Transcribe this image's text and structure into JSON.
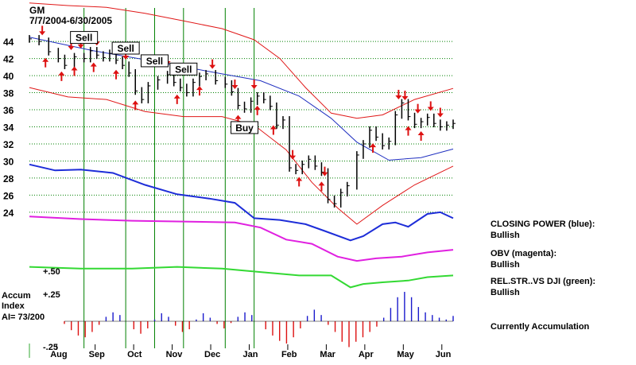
{
  "chart_data": {
    "type": "line",
    "ticker": "GM",
    "date_range": "7/7/2004-6/30/2005",
    "y_ticks": [
      44,
      42,
      40,
      38,
      36,
      34,
      32,
      30,
      28,
      26,
      24
    ],
    "ylim": [
      22.5,
      45.5
    ],
    "months": [
      "Aug",
      "Sep",
      "Oct",
      "Nov",
      "Dec",
      "Jan",
      "Feb",
      "Mar",
      "Apr",
      "May",
      "Jun"
    ],
    "price_series": {
      "t": [
        0,
        3,
        6,
        9,
        11,
        14,
        17,
        19,
        21,
        23,
        25,
        27,
        29,
        31,
        33,
        35,
        37,
        40,
        43,
        45,
        47,
        49,
        51,
        53,
        55,
        58,
        61,
        63,
        65,
        67,
        69,
        71,
        73,
        75,
        77,
        79,
        81,
        83,
        85,
        87,
        89,
        91,
        93,
        95,
        97,
        99,
        102,
        104,
        106,
        108,
        110,
        112,
        114,
        116,
        118,
        120,
        122,
        124,
        126,
        128,
        130,
        132
      ],
      "close": [
        44.3,
        44.0,
        42.8,
        42.0,
        41.2,
        42.2,
        42.0,
        42.9,
        42.4,
        42.1,
        42.6,
        41.8,
        41.2,
        40.3,
        38.2,
        37.2,
        38.8,
        39.5,
        40.1,
        39.2,
        38.6,
        38.0,
        39.2,
        39.9,
        40.2,
        39.4,
        39.0,
        38.1,
        36.5,
        36.1,
        37.0,
        37.6,
        37.2,
        36.4,
        34.2,
        34.8,
        29.2,
        28.9,
        29.6,
        30.2,
        29.4,
        28.7,
        25.5,
        25.0,
        26.3,
        27.1,
        30.7,
        32.0,
        33.6,
        32.8,
        31.8,
        32.3,
        35.4,
        36.8,
        35.2,
        34.3,
        34.6,
        35.1,
        34.4,
        34.0,
        34.2,
        34.4
      ]
    },
    "ma_series": [
      [
        0,
        44.5
      ],
      [
        20,
        42.9
      ],
      [
        40,
        41.6
      ],
      [
        60,
        40.2
      ],
      [
        72,
        39.4
      ],
      [
        84,
        37.6
      ],
      [
        94,
        35.0
      ],
      [
        102,
        32.2
      ],
      [
        112,
        30.1
      ],
      [
        122,
        30.4
      ],
      [
        132,
        31.4
      ]
    ],
    "upper_band": [
      [
        0,
        48.5
      ],
      [
        12,
        48.2
      ],
      [
        24,
        48.0
      ],
      [
        36,
        47.3
      ],
      [
        48,
        46.4
      ],
      [
        60,
        45.5
      ],
      [
        70,
        44.2
      ],
      [
        78,
        42.0
      ],
      [
        86,
        38.6
      ],
      [
        94,
        35.6
      ],
      [
        102,
        35.0
      ],
      [
        110,
        35.4
      ],
      [
        120,
        37.2
      ],
      [
        132,
        38.5
      ]
    ],
    "lower_band": [
      [
        0,
        38.6
      ],
      [
        12,
        37.5
      ],
      [
        24,
        37.2
      ],
      [
        36,
        35.8
      ],
      [
        48,
        35.2
      ],
      [
        60,
        35.2
      ],
      [
        70,
        34.2
      ],
      [
        80,
        31.3
      ],
      [
        88,
        27.5
      ],
      [
        96,
        24.5
      ],
      [
        102,
        22.6
      ],
      [
        110,
        24.8
      ],
      [
        120,
        27.2
      ],
      [
        132,
        29.4
      ]
    ],
    "closing_power_blue": [
      [
        0,
        29.6
      ],
      [
        8,
        28.9
      ],
      [
        16,
        29.0
      ],
      [
        26,
        28.6
      ],
      [
        36,
        27.2
      ],
      [
        46,
        26.1
      ],
      [
        56,
        25.6
      ],
      [
        64,
        25.1
      ],
      [
        70,
        23.3
      ],
      [
        78,
        23.1
      ],
      [
        86,
        22.6
      ],
      [
        92,
        21.8
      ],
      [
        100,
        20.7
      ],
      [
        104,
        21.2
      ],
      [
        110,
        22.6
      ],
      [
        114,
        22.8
      ],
      [
        118,
        22.3
      ],
      [
        124,
        23.8
      ],
      [
        128,
        24.0
      ],
      [
        132,
        23.3
      ]
    ],
    "obv_magenta": [
      [
        0,
        23.5
      ],
      [
        16,
        23.2
      ],
      [
        32,
        23.0
      ],
      [
        50,
        22.9
      ],
      [
        64,
        22.8
      ],
      [
        72,
        22.2
      ],
      [
        80,
        20.8
      ],
      [
        88,
        20.3
      ],
      [
        96,
        18.8
      ],
      [
        102,
        18.3
      ],
      [
        108,
        18.6
      ],
      [
        116,
        18.8
      ],
      [
        124,
        19.3
      ],
      [
        132,
        19.6
      ]
    ],
    "rel_strength_green": [
      [
        0,
        17.6
      ],
      [
        16,
        17.4
      ],
      [
        32,
        17.4
      ],
      [
        46,
        17.6
      ],
      [
        60,
        17.4
      ],
      [
        72,
        17.0
      ],
      [
        84,
        16.6
      ],
      [
        94,
        16.6
      ],
      [
        100,
        15.2
      ],
      [
        104,
        15.6
      ],
      [
        110,
        15.8
      ],
      [
        118,
        16.0
      ],
      [
        124,
        16.4
      ],
      [
        132,
        16.6
      ]
    ],
    "accumulation": {
      "values": [
        -0.03,
        -0.1,
        -0.16,
        -0.18,
        -0.12,
        -0.04,
        0.05,
        0.1,
        0.07,
        0.0,
        -0.09,
        -0.14,
        -0.08,
        0.02,
        0.09,
        0.05,
        -0.05,
        -0.12,
        -0.09,
        0.02,
        0.09,
        0.04,
        -0.03,
        -0.08,
        -0.02,
        0.05,
        0.1,
        0.07,
        0.0,
        -0.09,
        -0.16,
        -0.22,
        -0.25,
        -0.18,
        -0.08,
        0.06,
        0.13,
        0.07,
        -0.04,
        -0.12,
        -0.23,
        -0.29,
        -0.23,
        -0.18,
        -0.12,
        -0.06,
        0.04,
        0.15,
        0.27,
        0.33,
        0.27,
        0.16,
        0.1,
        0.07,
        0.04,
        0.02,
        0.06
      ],
      "upper_label": "+.25",
      "lower_label": "-.25"
    },
    "signals": {
      "sell": [
        {
          "label": "Sell",
          "t": 17
        },
        {
          "label": "Sell",
          "t": 30
        },
        {
          "label": "Sell",
          "t": 39
        },
        {
          "label": "Sell",
          "t": 48
        }
      ],
      "buy": [
        {
          "label": "Buy",
          "t": 67
        }
      ],
      "signal_lines_t": [
        17,
        30,
        39,
        48,
        61,
        70
      ]
    },
    "arrows_down": [
      4,
      13,
      16,
      21,
      30,
      43,
      57,
      64,
      70,
      82,
      92,
      115,
      117,
      121,
      125,
      128
    ],
    "arrows_up": [
      5,
      10,
      14,
      20,
      27,
      33,
      46,
      53,
      65,
      71,
      76,
      84,
      91,
      107,
      118,
      122
    ],
    "rel_str_label": "+.50"
  },
  "header": {
    "ticker": "GM",
    "date_range": "7/7/2004-6/30/2005"
  },
  "legend": {
    "closing_power_title": "CLOSING POWER (blue):",
    "closing_power_status": "Bullish",
    "obv_title": "OBV (magenta):",
    "obv_status": "Bullish",
    "rel_str_title": "REL.STR..VS DJI (green):",
    "rel_str_status": "Bullish",
    "accum_status": "Currently Accumulation"
  },
  "accum_box": {
    "line1": "Accum",
    "line2": "Index",
    "line3": "AI= 73/200"
  },
  "colors": {
    "price_bars": "#000000",
    "ma": "#2030c0",
    "bands": "#e01818",
    "closing_power": "#1d2dd8",
    "obv": "#e020e0",
    "rel_strength": "#33d933",
    "accum_pos": "#1a1acc",
    "accum_neg": "#dd1111",
    "grid": "#008000",
    "signal_lines": "#008000",
    "arrows": "#dd1111"
  }
}
